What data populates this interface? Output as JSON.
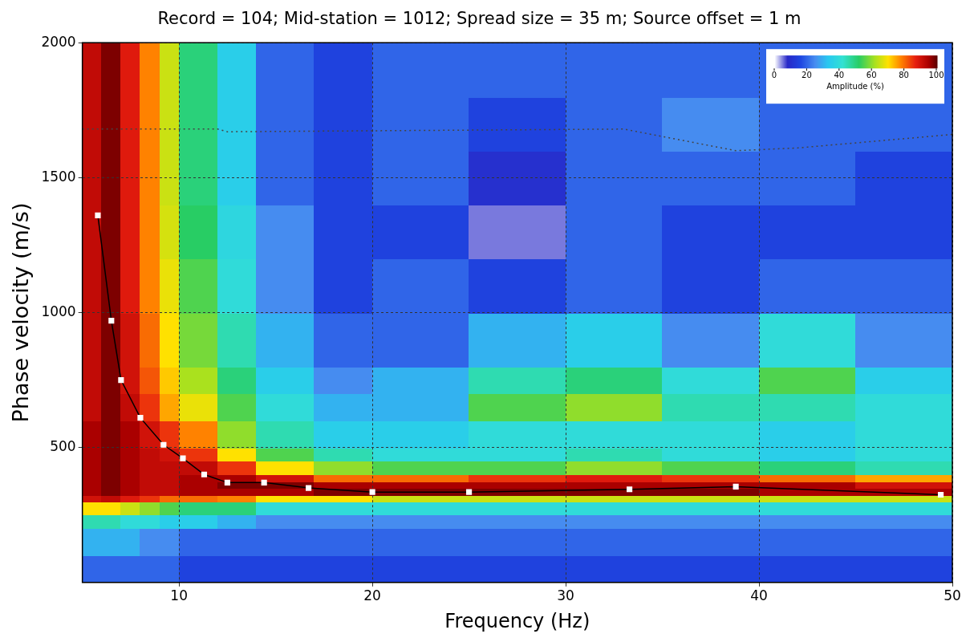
{
  "chart_data": {
    "type": "heatmap",
    "title": "Record = 104; Mid-station = 1012; Spread size = 35 m; Source offset = 1 m",
    "x_label": "Frequency (Hz)",
    "y_label": "Phase velocity (m/s)",
    "xlim": [
      5,
      50
    ],
    "ylim": [
      0,
      2000
    ],
    "xticks": [
      10,
      20,
      30,
      40,
      50
    ],
    "yticks": [
      500,
      1000,
      1500,
      2000
    ],
    "grid": true,
    "heatmap": {
      "x_edges": [
        5,
        6,
        7,
        8,
        9,
        10,
        12,
        14,
        17,
        20,
        25,
        30,
        35,
        40,
        45,
        50
      ],
      "y_edges": [
        0,
        100,
        200,
        250,
        300,
        325,
        350,
        375,
        400,
        450,
        500,
        600,
        700,
        800,
        1000,
        1200,
        1400,
        1600,
        1800,
        2000
      ],
      "cells": [
        [
          20,
          20,
          20,
          20,
          20,
          15,
          15,
          15,
          15,
          15,
          15,
          15,
          15,
          15,
          15
        ],
        [
          30,
          30,
          30,
          25,
          25,
          20,
          20,
          20,
          20,
          20,
          20,
          20,
          20,
          20,
          20
        ],
        [
          45,
          45,
          40,
          40,
          35,
          35,
          30,
          25,
          25,
          25,
          25,
          25,
          25,
          25,
          25
        ],
        [
          70,
          70,
          65,
          60,
          55,
          50,
          50,
          40,
          40,
          40,
          40,
          40,
          40,
          40,
          40
        ],
        [
          90,
          92,
          88,
          85,
          80,
          80,
          78,
          70,
          70,
          65,
          65,
          65,
          65,
          65,
          65
        ],
        [
          95,
          98,
          95,
          92,
          92,
          95,
          95,
          95,
          98,
          98,
          98,
          98,
          98,
          95,
          95
        ],
        [
          95,
          98,
          95,
          92,
          92,
          95,
          98,
          98,
          95,
          95,
          95,
          95,
          95,
          95,
          90
        ],
        [
          95,
          98,
          95,
          92,
          92,
          95,
          95,
          90,
          80,
          80,
          85,
          88,
          85,
          80,
          75
        ],
        [
          95,
          98,
          95,
          92,
          92,
          92,
          85,
          70,
          60,
          55,
          55,
          60,
          55,
          50,
          45
        ],
        [
          95,
          98,
          95,
          92,
          90,
          85,
          70,
          55,
          45,
          40,
          40,
          45,
          40,
          35,
          40
        ],
        [
          95,
          98,
          95,
          90,
          85,
          78,
          60,
          45,
          35,
          35,
          40,
          40,
          40,
          35,
          40
        ],
        [
          92,
          98,
          92,
          85,
          75,
          68,
          55,
          40,
          30,
          30,
          55,
          60,
          45,
          45,
          40
        ],
        [
          92,
          98,
          90,
          82,
          72,
          62,
          50,
          35,
          25,
          30,
          45,
          50,
          40,
          55,
          35
        ],
        [
          92,
          98,
          90,
          80,
          70,
          58,
          45,
          30,
          20,
          20,
          30,
          35,
          25,
          40,
          25
        ],
        [
          92,
          98,
          88,
          78,
          68,
          55,
          40,
          25,
          15,
          20,
          15,
          20,
          15,
          20,
          20
        ],
        [
          92,
          98,
          88,
          78,
          66,
          52,
          38,
          25,
          15,
          15,
          5,
          20,
          15,
          15,
          15
        ],
        [
          92,
          98,
          88,
          78,
          65,
          50,
          35,
          20,
          15,
          20,
          10,
          20,
          20,
          20,
          15
        ],
        [
          92,
          98,
          88,
          78,
          65,
          50,
          35,
          20,
          15,
          20,
          15,
          20,
          25,
          20,
          20
        ],
        [
          92,
          98,
          88,
          78,
          65,
          50,
          35,
          20,
          15,
          20,
          20,
          20,
          20,
          20,
          20
        ]
      ]
    },
    "colorbar": {
      "range": [
        0,
        100
      ],
      "ticks": [
        0,
        20,
        40,
        60,
        80,
        100
      ],
      "label": "Amplitude (%)"
    },
    "series": [
      {
        "type": "line",
        "color": "#000000",
        "marker": "square",
        "line_style": "solid",
        "x": [
          5.8,
          6.5,
          7,
          8,
          9.2,
          10.2,
          11.3,
          12.5,
          14.4,
          16.7,
          20,
          25,
          33.3,
          38.8,
          49.4
        ],
        "values": [
          1360,
          970,
          750,
          610,
          510,
          460,
          400,
          370,
          370,
          350,
          335,
          335,
          345,
          355,
          325
        ]
      },
      {
        "type": "line",
        "color": "#444444",
        "marker": "none",
        "line_style": "dotted",
        "x": [
          5,
          12,
          12.5,
          33,
          38.8,
          42,
          50
        ],
        "values": [
          1680,
          1680,
          1670,
          1680,
          1600,
          1610,
          1660
        ]
      }
    ],
    "legend": false
  }
}
